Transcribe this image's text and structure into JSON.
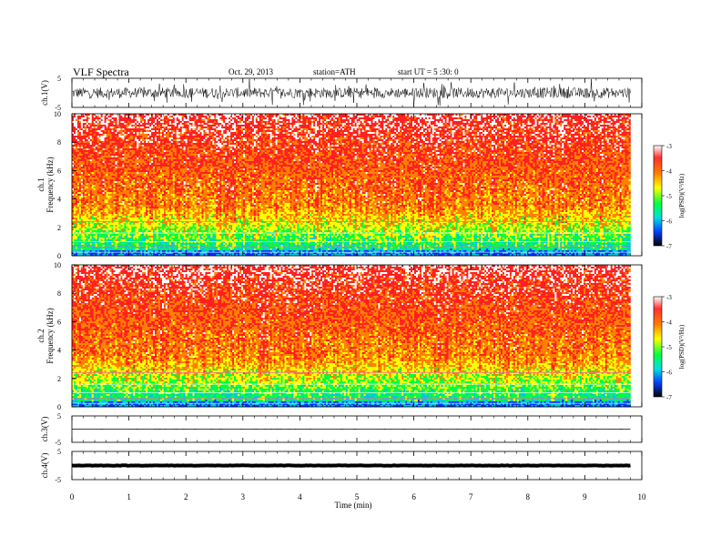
{
  "header": {
    "title": "VLF  Spectra",
    "date": "Oct. 29, 2013",
    "station": "station=ATH",
    "start": "start  UT  =   5  :30: 0"
  },
  "colors": {
    "axis": "#000000",
    "trace": "#000000",
    "background": "#ffffff"
  },
  "chart_data": [
    {
      "type": "line",
      "ylabel": "ch.1(V)",
      "y_ticks": [
        "5",
        "-5"
      ],
      "ylim": [
        -5,
        5
      ],
      "description_level": 0,
      "noise_amplitude": 1.8,
      "x": [
        0,
        9.8
      ]
    },
    {
      "type": "heatmap",
      "ylabel": "ch.1\nFrequency (kHz)",
      "y_ticks": [
        "0",
        "2",
        "4",
        "6",
        "8",
        "10"
      ],
      "ylim": [
        0,
        10
      ],
      "xlim": [
        0,
        9.8
      ],
      "colorbar": {
        "label": "log(PSD)(V²/Hz)",
        "ticks": [
          "-3",
          "-4",
          "-5",
          "-6",
          "-7"
        ],
        "range": [
          -7,
          -3
        ]
      }
    },
    {
      "type": "heatmap",
      "ylabel": "ch.2\nFrequency (kHz)",
      "y_ticks": [
        "0",
        "2",
        "4",
        "6",
        "8",
        "10"
      ],
      "ylim": [
        0,
        10
      ],
      "xlim": [
        0,
        9.8
      ],
      "colorbar": {
        "label": "log(PSD)(V²/Hz)",
        "ticks": [
          "-3",
          "-4",
          "-5",
          "-6",
          "-7"
        ],
        "range": [
          -7,
          -3
        ]
      }
    },
    {
      "type": "line",
      "ylabel": "ch.3(V)",
      "y_ticks": [
        "5",
        "-5"
      ],
      "ylim": [
        -5,
        5
      ],
      "level": 0,
      "noise_amplitude": 0.2,
      "x": [
        0,
        9.8
      ]
    },
    {
      "type": "line",
      "ylabel": "ch.4(V)",
      "y_ticks": [
        "5",
        "-5"
      ],
      "ylim": [
        -5,
        5
      ],
      "level": 0,
      "noise_amplitude": 0.4,
      "x": [
        0,
        9.8
      ]
    }
  ],
  "xaxis": {
    "label": "Time  (min)",
    "ticks": [
      "0",
      "1",
      "2",
      "3",
      "4",
      "5",
      "6",
      "7",
      "8",
      "9",
      "10"
    ],
    "xlim": [
      0,
      10
    ]
  }
}
